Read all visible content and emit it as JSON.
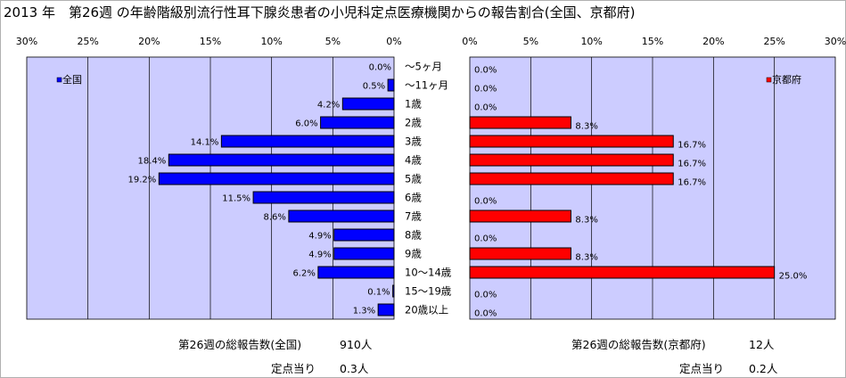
{
  "title": "2013 年　第26週 の年齢階級別流行性耳下腺炎患者の小児科定点医療機関からの報告割合(全国、京都府)",
  "chart_data": [
    {
      "type": "bar",
      "orientation": "horizontal",
      "direction": "right-to-left",
      "series": [
        {
          "name": "全国",
          "color": "#0000ff"
        }
      ],
      "categories": [
        "～5ヶ月",
        "～11ヶ月",
        "1歳",
        "2歳",
        "3歳",
        "4歳",
        "5歳",
        "6歳",
        "7歳",
        "8歳",
        "9歳",
        "10～14歳",
        "15～19歳",
        "20歳以上"
      ],
      "values": [
        0.0,
        0.5,
        4.2,
        6.0,
        14.1,
        18.4,
        19.2,
        11.5,
        8.6,
        4.9,
        4.9,
        6.2,
        0.1,
        1.3
      ],
      "value_labels": [
        "0.0%",
        "0.5%",
        "4.2%",
        "6.0%",
        "14.1%",
        "18.4%",
        "19.2%",
        "11.5%",
        "8.6%",
        "4.9%",
        "4.9%",
        "6.2%",
        "0.1%",
        "1.3%"
      ],
      "xlim": [
        0,
        30
      ],
      "x_ticks": [
        "30%",
        "25%",
        "20%",
        "15%",
        "10%",
        "5%",
        "0%"
      ],
      "legend_position": "top-left",
      "plot_background": "#ccccff"
    },
    {
      "type": "bar",
      "orientation": "horizontal",
      "direction": "left-to-right",
      "series": [
        {
          "name": "京都府",
          "color": "#ff0000"
        }
      ],
      "categories": [
        "～5ヶ月",
        "～11ヶ月",
        "1歳",
        "2歳",
        "3歳",
        "4歳",
        "5歳",
        "6歳",
        "7歳",
        "8歳",
        "9歳",
        "10～14歳",
        "15～19歳",
        "20歳以上"
      ],
      "values": [
        0.0,
        0.0,
        0.0,
        8.3,
        16.7,
        16.7,
        16.7,
        0.0,
        8.3,
        0.0,
        8.3,
        25.0,
        0.0,
        0.0
      ],
      "value_labels": [
        "0.0%",
        "0.0%",
        "0.0%",
        "8.3%",
        "16.7%",
        "16.7%",
        "16.7%",
        "0.0%",
        "8.3%",
        "0.0%",
        "8.3%",
        "25.0%",
        "0.0%",
        "0.0%"
      ],
      "xlim": [
        0,
        30
      ],
      "x_ticks": [
        "0%",
        "5%",
        "10%",
        "15%",
        "20%",
        "25%",
        "30%"
      ],
      "legend_position": "top-right",
      "plot_background": "#ccccff"
    }
  ],
  "footer": {
    "national_total_label": "第26週の総報告数(全国)",
    "national_total_value": "910人",
    "national_per_site_label": "定点当り",
    "national_per_site_value": "0.3人",
    "kyoto_total_label": "第26週の総報告数(京都府)",
    "kyoto_total_value": "12人",
    "kyoto_per_site_label": "定点当り",
    "kyoto_per_site_value": "0.2人"
  }
}
